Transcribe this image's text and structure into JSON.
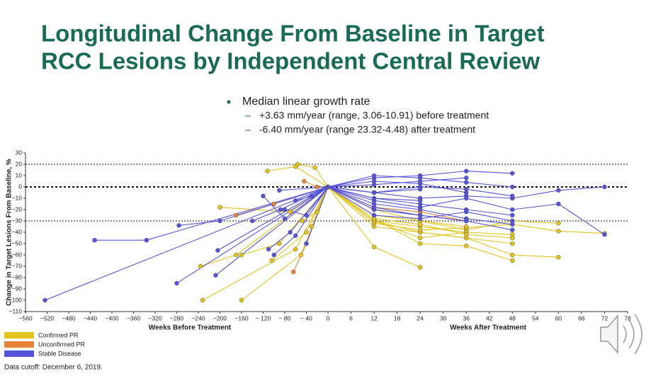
{
  "slide": {
    "title_lines": [
      "Longitudinal Change From Baseline in Target",
      "RCC Lesions by Independent Central Review"
    ],
    "bullet": "Median linear growth rate",
    "sub_bullets": [
      "+3.63 mm/year (range, 3.06-10.91) before treatment",
      "-6.40 mm/year (range 23.32-4.48) after treatment"
    ],
    "footnote": "Data cutoff: December 6, 2019."
  },
  "chart_data": {
    "type": "spaghetti",
    "ylabel": "Change in Target Lesions From Baseline, %",
    "xlabel_before": "Weeks Before Treatment",
    "xlabel_after": "Weeks After Treatment",
    "xlim_before": [
      -560,
      0
    ],
    "xlim_after": [
      0,
      78
    ],
    "ylim": [
      -110,
      30
    ],
    "xticks_before": [
      {
        "value": -560,
        "label": "−560"
      },
      {
        "value": -520,
        "label": "−520"
      },
      {
        "value": -480,
        "label": "−480"
      },
      {
        "value": -440,
        "label": "−440"
      },
      {
        "value": -400,
        "label": "−400"
      },
      {
        "value": -360,
        "label": "−360"
      },
      {
        "value": -320,
        "label": "−320"
      },
      {
        "value": -280,
        "label": "−280"
      },
      {
        "value": -240,
        "label": "−240"
      },
      {
        "value": -200,
        "label": "−200"
      },
      {
        "value": -160,
        "label": "−160"
      },
      {
        "value": -120,
        "label": "− 120"
      },
      {
        "value": -80,
        "label": "− 80"
      },
      {
        "value": -40,
        "label": "− 40"
      },
      0
    ],
    "xticks_after": [
      6,
      12,
      18,
      24,
      30,
      36,
      42,
      48,
      54,
      60,
      66,
      72,
      78
    ],
    "yticks": [
      30,
      20,
      10,
      0,
      {
        "value": -10,
        "label": "−10"
      },
      {
        "value": -20,
        "label": "−20"
      },
      {
        "value": -30,
        "label": "−30"
      },
      {
        "value": -40,
        "label": "−40"
      },
      {
        "value": -50,
        "label": "−50"
      },
      {
        "value": -60,
        "label": "−60"
      },
      {
        "value": -70,
        "label": "−70"
      },
      {
        "value": -80,
        "label": "−80"
      },
      {
        "value": -90,
        "label": "−90"
      },
      {
        "value": -100,
        "label": "−100"
      },
      {
        "value": -110,
        "label": "−110"
      }
    ],
    "reference_lines": [
      20,
      0,
      -30
    ],
    "series": [
      {
        "name": "Confirmed PR",
        "color": "#e3c41c",
        "patients": [
          {
            "x": [
              -56,
              -24,
              0,
              12,
              24
            ],
            "values": [
              20,
              17,
              0,
              -53,
              -71
            ]
          },
          {
            "x": [
              -112,
              -60,
              0,
              12,
              24,
              36,
              48
            ],
            "values": [
              14,
              18,
              0,
              -30,
              -40,
              -45,
              -50
            ]
          },
          {
            "x": [
              -236,
              -170,
              0,
              12,
              24,
              36,
              48,
              60
            ],
            "values": [
              -70,
              -60,
              0,
              -35,
              -40,
              -45,
              -60,
              -62
            ]
          },
          {
            "x": [
              -232,
              -60,
              0,
              12,
              24,
              36,
              48
            ],
            "values": [
              -100,
              -55,
              0,
              -30,
              -35,
              -40,
              -42
            ]
          },
          {
            "x": [
              -160,
              -50,
              0,
              12,
              24,
              36,
              48,
              60,
              72
            ],
            "values": [
              -100,
              -60,
              0,
              -32,
              -38,
              -36,
              -33,
              -39,
              -41
            ]
          },
          {
            "x": [
              -104,
              -40,
              0,
              12,
              24,
              36,
              48
            ],
            "values": [
              -65,
              -40,
              0,
              -28,
              -50,
              -52,
              -65
            ]
          },
          {
            "x": [
              -160,
              -90,
              0,
              12,
              24,
              36,
              48,
              60
            ],
            "values": [
              -60,
              -50,
              0,
              -25,
              -30,
              -38,
              -30,
              -32
            ]
          },
          {
            "x": [
              -48,
              -20,
              0,
              12,
              24,
              36
            ],
            "values": [
              -30,
              -22,
              0,
              -30,
              -45,
              -40
            ]
          },
          {
            "x": [
              -200,
              -70,
              0,
              12,
              24,
              36
            ],
            "values": [
              -18,
              -22,
              0,
              -20,
              -30,
              -35
            ]
          },
          {
            "x": [
              -30,
              0,
              12,
              24,
              36,
              48
            ],
            "values": [
              -35,
              0,
              -28,
              -33,
              -42,
              -45
            ]
          }
        ]
      },
      {
        "name": "Unconfirmed PR",
        "color": "#e8843a",
        "patients": [
          {
            "x": [
              -64,
              -40,
              0,
              12,
              24
            ],
            "values": [
              -75,
              -50,
              0,
              -20,
              -25
            ]
          },
          {
            "x": [
              -44,
              -20,
              0,
              12,
              24
            ],
            "values": [
              5,
              0,
              0,
              -5,
              -10
            ]
          },
          {
            "x": [
              -170,
              -100,
              0,
              12,
              24,
              36
            ],
            "values": [
              -25,
              -15,
              0,
              -18,
              -22,
              -30
            ]
          }
        ]
      },
      {
        "name": "Stable Disease",
        "color": "#5553d9",
        "patients": [
          {
            "x": [
              -524,
              0,
              12,
              24,
              36,
              48
            ],
            "values": [
              -100,
              0,
              -10,
              -15,
              -20,
              -25
            ]
          },
          {
            "x": [
              -432,
              -336,
              0,
              12,
              24,
              36
            ],
            "values": [
              -47,
              -47,
              0,
              5,
              3,
              -5
            ]
          },
          {
            "x": [
              -276,
              -200,
              0,
              12,
              24,
              36,
              48
            ],
            "values": [
              -34,
              -30,
              0,
              8,
              10,
              14,
              12
            ]
          },
          {
            "x": [
              -204,
              0,
              12,
              24,
              36,
              48,
              60,
              72
            ],
            "values": [
              -56,
              0,
              -5,
              -10,
              -8,
              -10,
              -3,
              0
            ]
          },
          {
            "x": [
              -280,
              0,
              12,
              24,
              36,
              48,
              60,
              72
            ],
            "values": [
              -85,
              0,
              -12,
              -18,
              -10,
              -20,
              -15,
              -42
            ]
          },
          {
            "x": [
              -208,
              0,
              12,
              24,
              36
            ],
            "values": [
              -78,
              0,
              -20,
              -25,
              -30
            ]
          },
          {
            "x": [
              -120,
              -80,
              0,
              12,
              24,
              36,
              48
            ],
            "values": [
              -8,
              -28,
              0,
              -15,
              -20,
              -28,
              -33
            ]
          },
          {
            "x": [
              -100,
              -60,
              0,
              12,
              24,
              36,
              48
            ],
            "values": [
              -60,
              -43,
              0,
              -5,
              0,
              -2,
              -8
            ]
          },
          {
            "x": [
              -80,
              -40,
              0,
              12,
              24,
              36
            ],
            "values": [
              -20,
              -25,
              0,
              2,
              5,
              8
            ]
          },
          {
            "x": [
              -40,
              0,
              12,
              24,
              36,
              48
            ],
            "values": [
              -50,
              0,
              -18,
              -25,
              -30,
              -38
            ]
          },
          {
            "x": [
              -140,
              -88,
              0,
              12,
              24
            ],
            "values": [
              -30,
              -20,
              0,
              -10,
              -12
            ]
          },
          {
            "x": [
              -60,
              -30,
              0,
              12,
              24,
              36,
              48
            ],
            "values": [
              -12,
              -8,
              0,
              10,
              8,
              4,
              0
            ]
          },
          {
            "x": [
              -90,
              0,
              12,
              24
            ],
            "values": [
              -3,
              0,
              -5,
              -2
            ]
          },
          {
            "x": [
              -110,
              -70,
              0,
              12,
              24,
              36,
              48
            ],
            "values": [
              -55,
              -40,
              0,
              -25,
              -28,
              -22,
              -30
            ]
          }
        ]
      }
    ]
  }
}
